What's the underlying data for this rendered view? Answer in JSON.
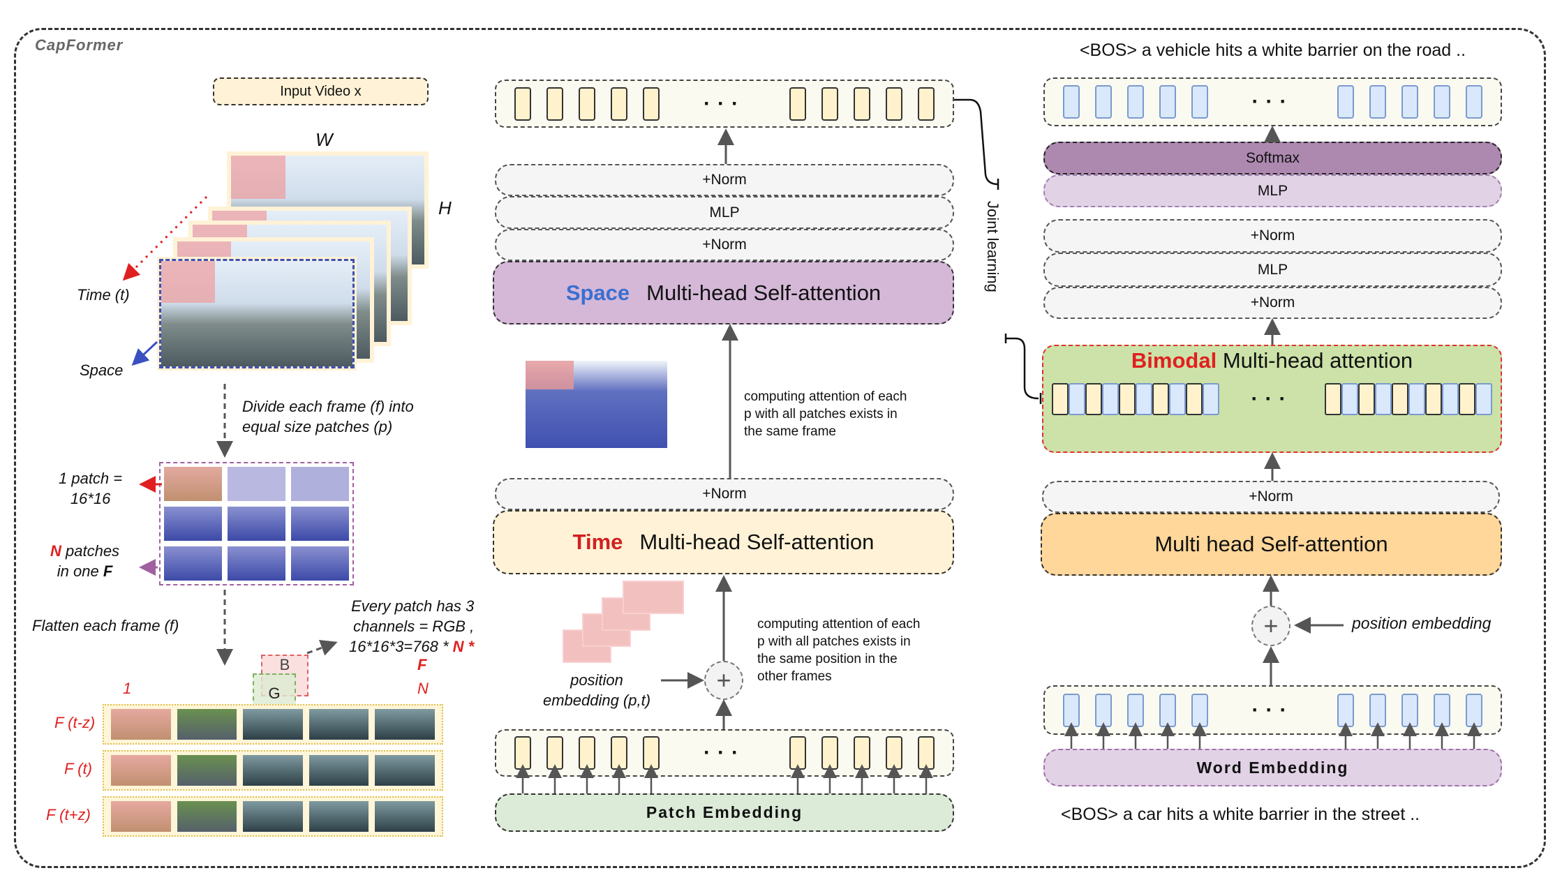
{
  "title": "CapFormer",
  "left": {
    "input_video": "Input Video x",
    "w": "W",
    "h": "H",
    "time": "Time (t)",
    "space": "Space",
    "divide": [
      "Divide each frame (f) into",
      "equal size patches (p)"
    ],
    "patch_size": [
      "1 patch =",
      "16*16"
    ],
    "n_patches": {
      "n": "N",
      "rest1": " patches",
      "rest2": "in one ",
      "f": "F"
    },
    "flatten": "Flatten  each frame (f)",
    "every_patch": [
      "Every patch has 3",
      "channels = RGB ,",
      "16*16*3=768 * "
    ],
    "every_n": "N",
    "every_star": " *",
    "every_f": "F",
    "b": "B",
    "g": "G",
    "col_first": "1",
    "col_last": "N",
    "rows": [
      "F (t-z)",
      "F (t)",
      "F (t+z)"
    ]
  },
  "middle": {
    "norm_top1": "+Norm",
    "mlp": "MLP",
    "norm_top2": "+Norm",
    "space_word": "Space",
    "space_rest": "Multi-head Self-attention",
    "space_desc": [
      "computing attention of each",
      "p with all patches exists in",
      "the same frame"
    ],
    "norm_mid": "+Norm",
    "time_word": "Time",
    "time_rest": "Multi-head Self-attention",
    "time_desc": [
      "computing attention of each",
      "p with all patches exists in",
      "the same position  in the",
      "other frames"
    ],
    "pos_emb": [
      "position",
      "embedding (p,t)"
    ],
    "plus": "+",
    "patch_embedding": "Patch Embedding",
    "joint": "Joint learning"
  },
  "right": {
    "output_caption": "<BOS>  a vehicle hits a white barrier on the road ..",
    "softmax": "Softmax",
    "mlp1": "MLP",
    "norm1": "+Norm",
    "mlp2": "MLP",
    "norm2": "+Norm",
    "bimodal_word": "Bimodal",
    "bimodal_rest": "Multi-head attention",
    "norm3": "+Norm",
    "mhsa": "Multi head Self-attention",
    "plus": "+",
    "pos_emb": "position embedding",
    "word_embedding": "Word Embedding",
    "input_caption": "<BOS>  a car hits a white barrier in the street .."
  },
  "colors": {
    "red": "#e02020",
    "blue": "#3a6fd0",
    "space_block": "#d5b8d8",
    "time_block": "#fff2d6",
    "bimodal": "#cce2a8",
    "mhsa": "#ffd79a",
    "softmax": "#ad89b0",
    "mlp_purple": "#e2d2e6",
    "patch_emb": "#dcebd8",
    "word_emb": "#e2d2e6"
  }
}
